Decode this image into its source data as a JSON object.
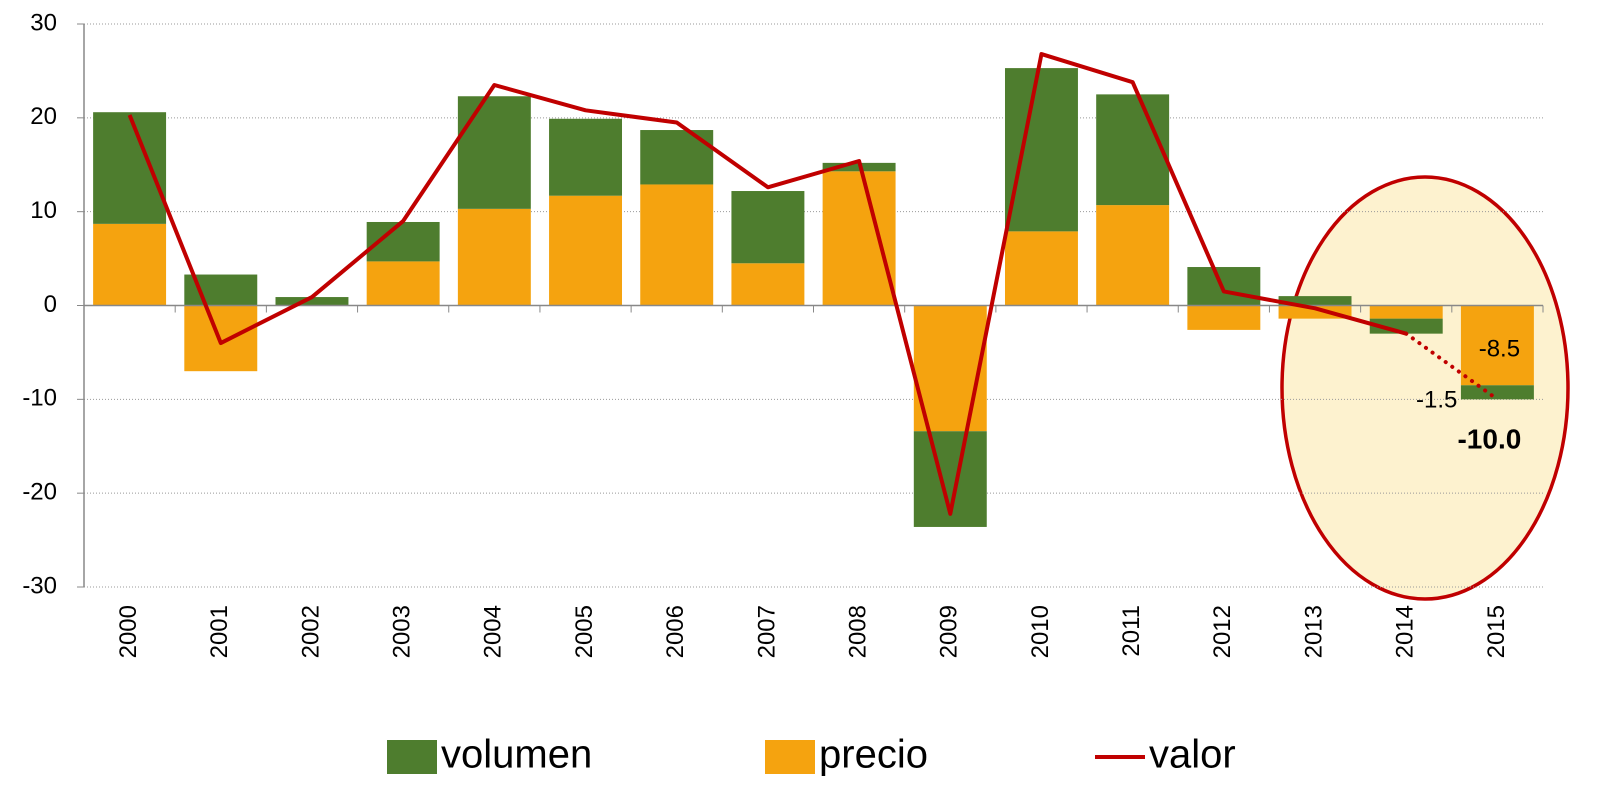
{
  "chart_data": {
    "type": "stacked-bar-line",
    "categories": [
      "2000",
      "2001",
      "2002",
      "2003",
      "2004",
      "2005",
      "2006",
      "2007",
      "2008",
      "2009",
      "2010",
      "2011",
      "2012",
      "2013",
      "2014",
      "2015"
    ],
    "series": [
      {
        "name": "volumen",
        "kind": "bar",
        "color": "#4e7d2e",
        "values": [
          11.9,
          3.3,
          0.9,
          4.2,
          12.0,
          8.2,
          5.8,
          7.7,
          0.9,
          -10.2,
          17.4,
          11.8,
          4.1,
          1.0,
          -1.6,
          -1.5
        ],
        "value_labels": [
          null,
          null,
          null,
          null,
          null,
          null,
          null,
          null,
          null,
          null,
          null,
          null,
          null,
          null,
          null,
          "-1.5"
        ]
      },
      {
        "name": "precio",
        "kind": "bar",
        "color": "#f5a30f",
        "values": [
          8.7,
          -7.0,
          0.0,
          4.7,
          10.3,
          11.7,
          12.9,
          4.5,
          14.3,
          -13.4,
          7.9,
          10.7,
          -2.6,
          -1.4,
          -1.4,
          -8.5
        ],
        "value_labels": [
          null,
          null,
          null,
          null,
          null,
          null,
          null,
          null,
          null,
          null,
          null,
          null,
          null,
          null,
          null,
          "-8.5"
        ]
      },
      {
        "name": "valor",
        "kind": "line",
        "color": "#c00000",
        "values": [
          20.3,
          -4.0,
          0.9,
          9.0,
          23.5,
          20.8,
          19.5,
          12.6,
          15.4,
          -22.2,
          26.8,
          23.8,
          1.5,
          -0.3,
          -3.0,
          -10.0
        ],
        "value_labels": [
          null,
          null,
          null,
          null,
          null,
          null,
          null,
          null,
          null,
          null,
          null,
          null,
          null,
          null,
          null,
          "-10.0"
        ],
        "dotted_last_segment": true
      }
    ],
    "ylim": [
      -30,
      30
    ],
    "yticks": [
      -30,
      -20,
      -10,
      0,
      10,
      20,
      30
    ],
    "grid": true,
    "legend": "bottom"
  }
}
